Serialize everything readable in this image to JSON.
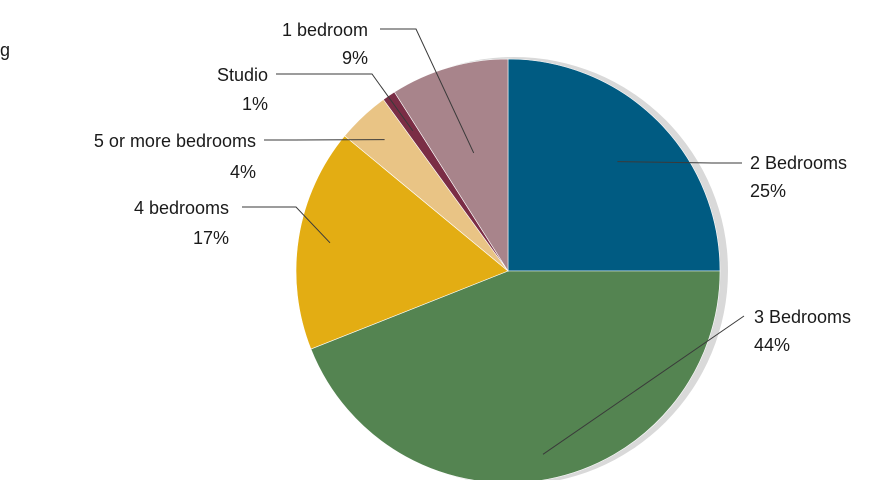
{
  "chart_data": {
    "type": "pie",
    "categories": [
      "2 Bedrooms",
      "3 Bedrooms",
      "4 bedrooms",
      "5 or more bedrooms",
      "Studio",
      "1 bedroom"
    ],
    "values": [
      25,
      44,
      17,
      4,
      1,
      9
    ],
    "value_labels": [
      "25%",
      "44%",
      "17%",
      "4%",
      "1%",
      "9%"
    ],
    "colors": [
      "#005b82",
      "#548451",
      "#e3ad13",
      "#e9c485",
      "#7a2d45",
      "#a8848b"
    ],
    "start_angle": "12 o'clock",
    "direction": "clockwise",
    "legend": "none",
    "label_style": "leader lines"
  },
  "cropped_text": "g"
}
